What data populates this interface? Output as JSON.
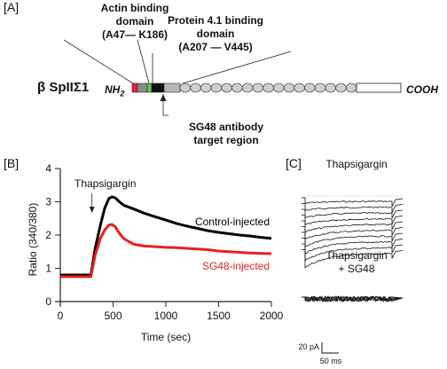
{
  "figure": {
    "panel_a": {
      "panel_label": "[A]",
      "protein_name": "β SpIIΣ1",
      "n_terminus": "NH",
      "n_terminus_subscript": "2",
      "c_terminus": "COOH",
      "actin_domain": {
        "line1": "Actin binding",
        "line2": "domain",
        "line3": "(A47— K186)"
      },
      "protein41_domain": {
        "line1": "Protein 4.1 binding",
        "line2": "domain",
        "line3": "(A207 — V445)"
      },
      "antibody_target": {
        "line1": "SG48 antibody",
        "line2": "target region"
      },
      "segment_colors": [
        "#e8253c",
        "#8a8a8a",
        "#6cc24a",
        "#111111",
        "#b8b8b8"
      ],
      "spectrin_repeat_count": 17
    },
    "panel_b": {
      "panel_label": "[B]",
      "stimulus_label": "Thapsigargin",
      "control_label": "Control-injected",
      "sg48_label": "SG48-injected",
      "control_color": "#000000",
      "sg48_color": "#e82020"
    },
    "panel_c": {
      "panel_label": "[C]",
      "top_label": "Thapsigargin",
      "bottom_label_line1": "Thapsigargin",
      "bottom_label_line2": "+ SG48",
      "scale_current": "20 pA",
      "scale_time": "50 ms"
    }
  },
  "chart_data": {
    "type": "line",
    "xlabel": "Time (sec)",
    "ylabel": "Ratio (340/380)",
    "xlim": [
      0,
      2000
    ],
    "ylim": [
      0,
      4
    ],
    "xticks": [
      "0",
      "500",
      "1000",
      "1500",
      "2000"
    ],
    "yticks": [
      "0",
      "1",
      "2",
      "3",
      "4"
    ],
    "annotation": {
      "text": "Thapsigargin",
      "x": 300
    },
    "series": [
      {
        "name": "Control-injected",
        "color": "#000000",
        "x": [
          0,
          100,
          200,
          290,
          330,
          380,
          420,
          460,
          490,
          520,
          560,
          600,
          700,
          800,
          900,
          1000,
          1100,
          1200,
          1300,
          1400,
          1500,
          1600,
          1700,
          1800,
          1900,
          2000
        ],
        "y": [
          0.8,
          0.8,
          0.8,
          0.8,
          1.6,
          2.3,
          2.8,
          3.1,
          3.15,
          3.12,
          3.0,
          2.9,
          2.78,
          2.65,
          2.55,
          2.45,
          2.35,
          2.27,
          2.2,
          2.13,
          2.08,
          2.04,
          2.0,
          1.97,
          1.93,
          1.9
        ]
      },
      {
        "name": "SG48-injected",
        "color": "#e82020",
        "x": [
          0,
          100,
          200,
          290,
          330,
          380,
          420,
          460,
          490,
          520,
          560,
          600,
          650,
          700,
          800,
          900,
          1000,
          1100,
          1200,
          1300,
          1400,
          1500,
          1600,
          1700,
          1800,
          1900,
          2000
        ],
        "y": [
          0.75,
          0.75,
          0.75,
          0.75,
          1.4,
          1.9,
          2.15,
          2.3,
          2.32,
          2.25,
          2.05,
          1.9,
          1.8,
          1.72,
          1.67,
          1.65,
          1.63,
          1.62,
          1.6,
          1.58,
          1.56,
          1.52,
          1.5,
          1.48,
          1.46,
          1.45,
          1.44
        ]
      }
    ]
  }
}
